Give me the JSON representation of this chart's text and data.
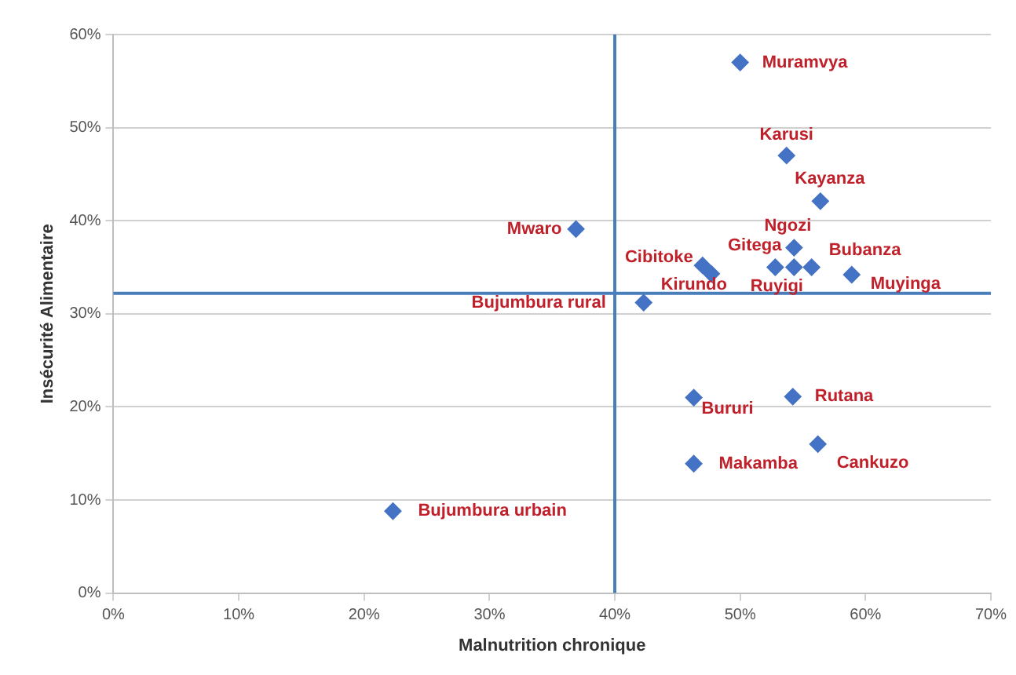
{
  "chart_data": {
    "type": "scatter",
    "xlabel": "Malnutrition chronique",
    "ylabel": "Insécurité Alimentaire",
    "x": [
      50,
      53.7,
      56.4,
      36.9,
      54.3,
      47.0,
      47.7,
      52.8,
      54.3,
      55.7,
      58.9,
      42.3,
      46.3,
      54.2,
      56.2,
      46.3,
      22.3
    ],
    "series": [
      {
        "color": "#4472c4",
        "values": [
          57.0,
          47.0,
          42.1,
          39.1,
          37.1,
          35.2,
          34.3,
          35.0,
          35.0,
          35.0,
          34.2,
          31.2,
          21.0,
          21.1,
          16.0,
          13.9,
          8.8
        ]
      }
    ],
    "annotations": [
      {
        "text": "Muramvya",
        "x": 50,
        "y": 57.0
      },
      {
        "text": "Karusi",
        "x": 53.7,
        "y": 47.0
      },
      {
        "text": "Kayanza",
        "x": 56.4,
        "y": 42.1
      },
      {
        "text": "Mwaro",
        "x": 36.9,
        "y": 39.1
      },
      {
        "text": "Ngozi",
        "x": 54.3,
        "y": 37.1
      },
      {
        "text": "Cibitoke",
        "x": 47.0,
        "y": 35.2
      },
      {
        "text": "Kirundo",
        "x": 47.7,
        "y": 34.3
      },
      {
        "text": "Gitega",
        "x": 52.8,
        "y": 35.0
      },
      {
        "text": "Ruyigi",
        "x": 54.3,
        "y": 35.0
      },
      {
        "text": "Bubanza",
        "x": 55.7,
        "y": 35.0
      },
      {
        "text": "Muyinga",
        "x": 58.9,
        "y": 34.2
      },
      {
        "text": "Bujumbura rural",
        "x": 42.3,
        "y": 31.2
      },
      {
        "text": "Bururi",
        "x": 46.3,
        "y": 21.0
      },
      {
        "text": "Rutana",
        "x": 54.2,
        "y": 21.1
      },
      {
        "text": "Cankuzo",
        "x": 56.2,
        "y": 16.0
      },
      {
        "text": "Makamba",
        "x": 46.3,
        "y": 13.9
      },
      {
        "text": "Bujumbura urbain",
        "x": 22.3,
        "y": 8.8
      }
    ],
    "ref_lines": [
      {
        "axis": "x",
        "value": 40,
        "color": "#4a7ebb"
      },
      {
        "axis": "y",
        "value": 32.2,
        "color": "#4a7ebb"
      }
    ],
    "xlim": [
      0,
      70
    ],
    "xticks": [
      {
        "value": 0,
        "label": "0%"
      },
      {
        "value": 10,
        "label": "10%"
      },
      {
        "value": 20,
        "label": "20%"
      },
      {
        "value": 30,
        "label": "30%"
      },
      {
        "value": 40,
        "label": "40%"
      },
      {
        "value": 50,
        "label": "50%"
      },
      {
        "value": 60,
        "label": "60%"
      },
      {
        "value": 70,
        "label": "70%"
      }
    ],
    "ylim": [
      0,
      60
    ],
    "yticks": [
      {
        "value": 0,
        "label": "0%"
      },
      {
        "value": 10,
        "label": "10%"
      },
      {
        "value": 20,
        "label": "20%"
      },
      {
        "value": 30,
        "label": "30%"
      },
      {
        "value": 40,
        "label": "40%"
      },
      {
        "value": 50,
        "label": "50%"
      },
      {
        "value": 60,
        "label": "60%"
      }
    ],
    "grid": "y",
    "legend": false,
    "marker": "diamond"
  }
}
